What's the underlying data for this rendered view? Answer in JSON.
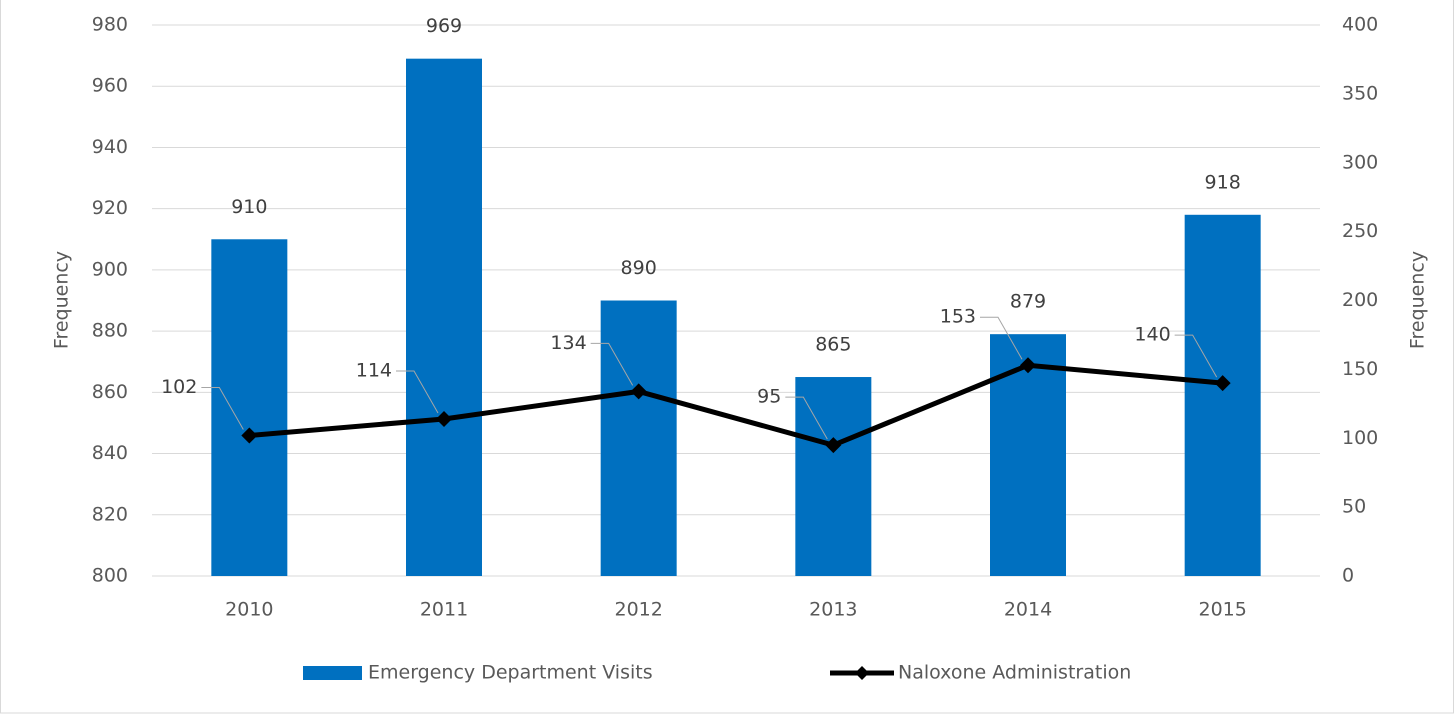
{
  "chart_data": {
    "type": "bar",
    "categories": [
      "2010",
      "2011",
      "2012",
      "2013",
      "2014",
      "2015"
    ],
    "series": [
      {
        "name": "Emergency Department Visits",
        "type": "bar",
        "color": "#0070c0",
        "values": [
          910,
          969,
          890,
          865,
          879,
          918
        ]
      },
      {
        "name": "Naloxone Administration",
        "type": "line",
        "axis": "y2",
        "color": "#000000",
        "values": [
          102,
          114,
          134,
          95,
          153,
          140
        ]
      }
    ],
    "ylabel": "Frequency",
    "y2label": "Frequency",
    "ylim": [
      800,
      980
    ],
    "yticks": [
      800,
      820,
      840,
      860,
      880,
      900,
      920,
      940,
      960,
      980
    ],
    "y2lim": [
      0,
      400
    ],
    "y2ticks": [
      0,
      50,
      100,
      150,
      200,
      250,
      300,
      350,
      400
    ],
    "grid": true,
    "legend": "bottom"
  }
}
